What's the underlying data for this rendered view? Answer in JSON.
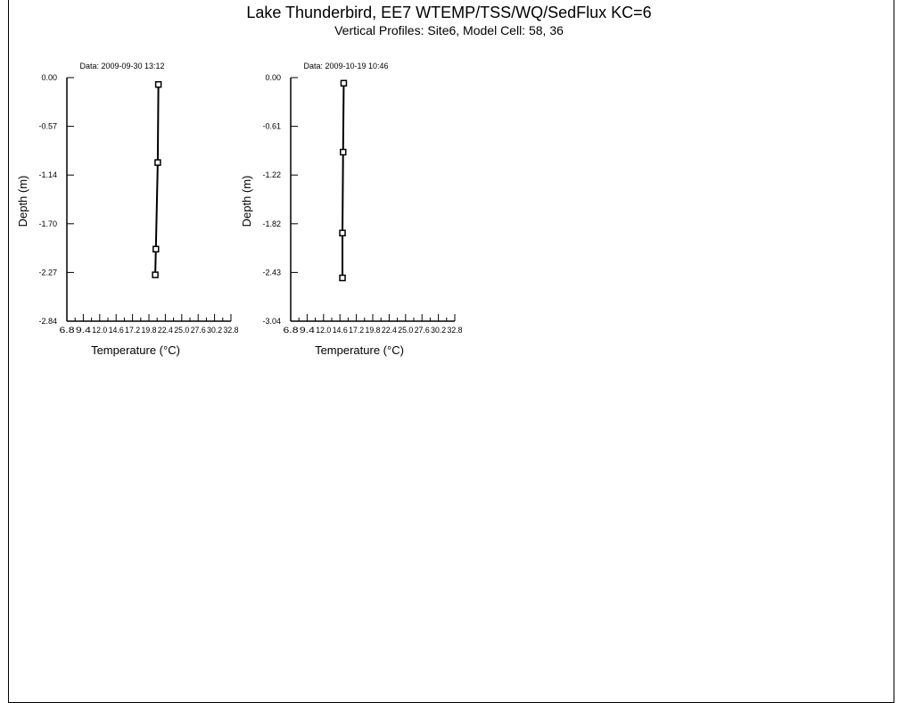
{
  "header": {
    "title": "Lake Thunderbird, EE7 WTEMP/TSS/WQ/SedFlux KC=6",
    "subtitle": "Vertical Profiles: Site6, Model Cell: 58, 36"
  },
  "chart_data": [
    {
      "type": "line",
      "title": "Data: 2009-09-30 13:12",
      "xlabel": "Temperature (°C)",
      "ylabel": "Depth (m)",
      "xlim": [
        6.8,
        32.8
      ],
      "ylim": [
        -2.84,
        0.0
      ],
      "x_ticks": [
        "6.8",
        "9.4",
        "12.0",
        "14.6",
        "17.2",
        "19.8",
        "22.4",
        "25.0",
        "27.6",
        "30.2",
        "32.8"
      ],
      "y_ticks": [
        "0.00",
        "-0.57",
        "-1.14",
        "-1.70",
        "-2.27",
        "-2.84"
      ],
      "grid": false,
      "series": [
        {
          "marker": "square",
          "x": [
            21.3,
            21.2,
            20.9,
            20.8
          ],
          "y": [
            -0.08,
            -0.99,
            -2.0,
            -2.3
          ]
        }
      ]
    },
    {
      "type": "line",
      "title": "Data: 2009-10-19 10:46",
      "xlabel": "Temperature (°C)",
      "ylabel": "Depth (m)",
      "xlim": [
        6.8,
        32.8
      ],
      "ylim": [
        -3.04,
        0.0
      ],
      "x_ticks": [
        "6.8",
        "9.4",
        "12.0",
        "14.6",
        "17.2",
        "19.8",
        "22.4",
        "25.0",
        "27.6",
        "30.2",
        "32.8"
      ],
      "y_ticks": [
        "0.00",
        "-0.61",
        "-1.22",
        "-1.82",
        "-2.43",
        "-3.04"
      ],
      "grid": false,
      "series": [
        {
          "marker": "square",
          "x": [
            15.2,
            15.1,
            15.0,
            15.0
          ],
          "y": [
            -0.07,
            -0.93,
            -1.94,
            -2.5
          ]
        }
      ]
    }
  ]
}
